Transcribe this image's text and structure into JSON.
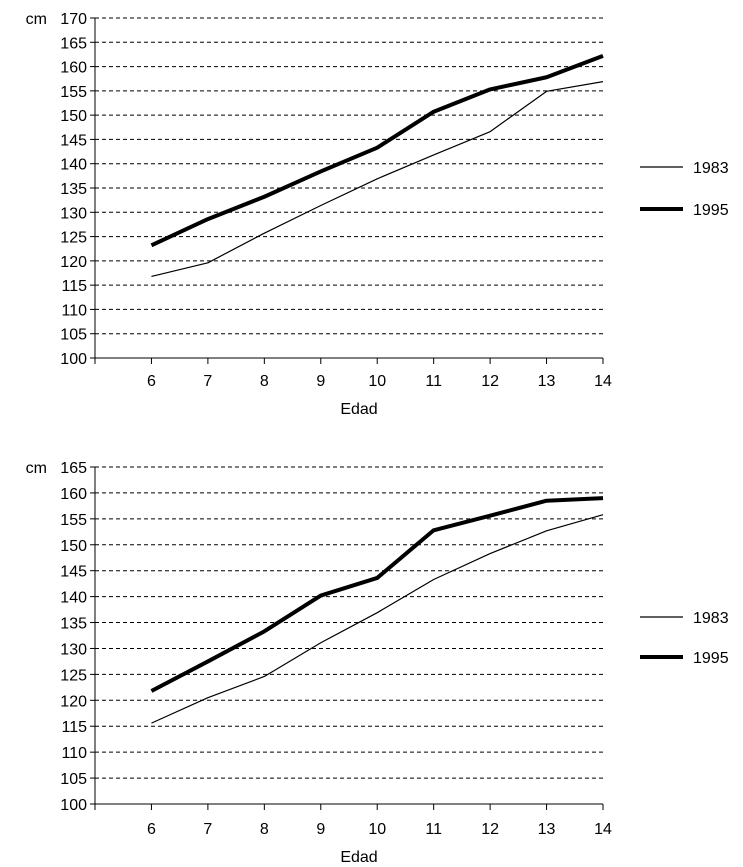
{
  "chart_data": [
    {
      "type": "line",
      "xlabel": "Edad",
      "ylabel": "cm",
      "x": [
        6,
        7,
        8,
        9,
        10,
        11,
        12,
        13,
        14
      ],
      "ylim": [
        100,
        170
      ],
      "yticks": [
        100,
        105,
        110,
        115,
        120,
        125,
        130,
        135,
        140,
        145,
        150,
        155,
        160,
        165,
        170
      ],
      "grid": true,
      "legend_position": "right",
      "series": [
        {
          "name": "1983",
          "color": "#000000",
          "width": "thin",
          "values": [
            116.8,
            119.6,
            125.7,
            131.4,
            136.9,
            141.8,
            146.6,
            154.9,
            156.9
          ]
        },
        {
          "name": "1995",
          "color": "#000000",
          "width": "thick",
          "values": [
            123.2,
            128.6,
            133.2,
            138.4,
            143.3,
            150.7,
            155.3,
            157.8,
            162.2
          ]
        }
      ]
    },
    {
      "type": "line",
      "xlabel": "Edad",
      "ylabel": "cm",
      "x": [
        6,
        7,
        8,
        9,
        10,
        11,
        12,
        13,
        14
      ],
      "ylim": [
        100,
        165
      ],
      "yticks": [
        100,
        105,
        110,
        115,
        120,
        125,
        130,
        135,
        140,
        145,
        150,
        155,
        160,
        165
      ],
      "grid": true,
      "legend_position": "right",
      "series": [
        {
          "name": "1983",
          "color": "#000000",
          "width": "thin",
          "values": [
            115.6,
            120.5,
            124.6,
            131.1,
            136.9,
            143.3,
            148.3,
            152.7,
            155.8
          ]
        },
        {
          "name": "1995",
          "color": "#000000",
          "width": "thick",
          "values": [
            121.8,
            127.5,
            133.3,
            140.2,
            143.6,
            152.8,
            155.6,
            158.5,
            159.0
          ]
        }
      ]
    }
  ]
}
